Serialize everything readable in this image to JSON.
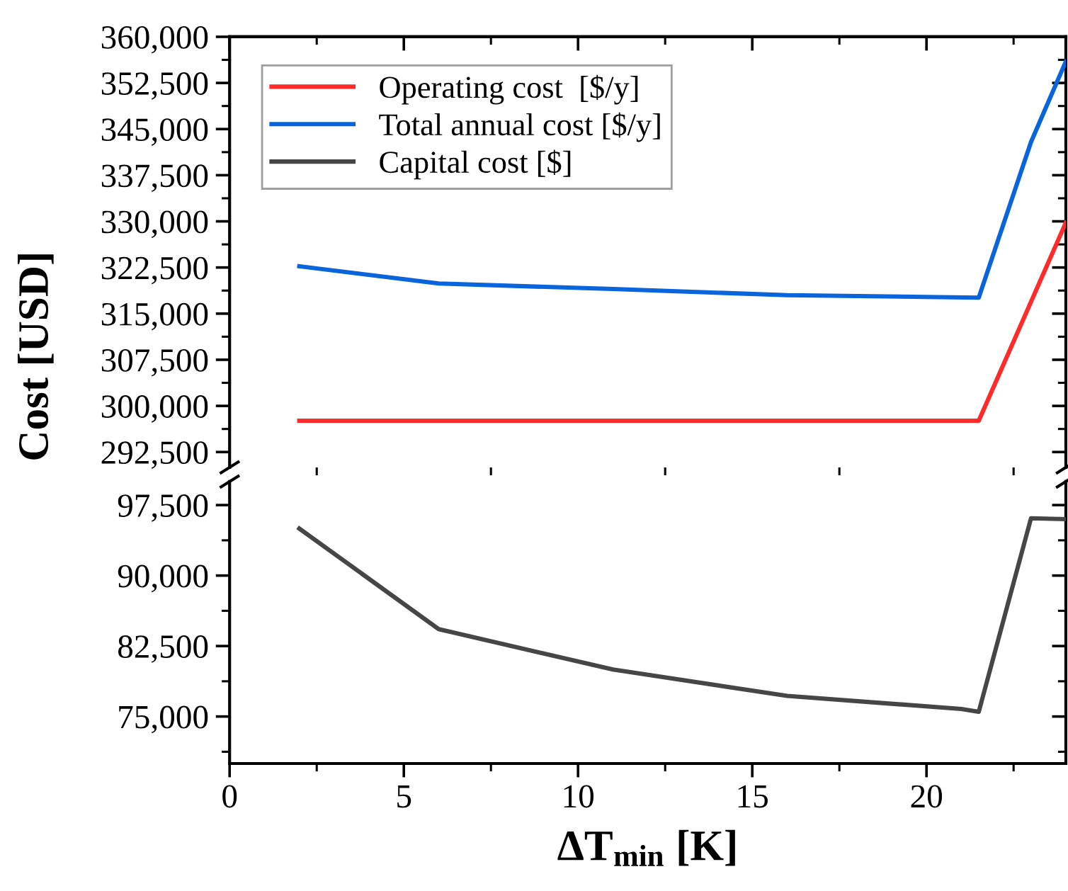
{
  "chart_data": [
    {
      "type": "line",
      "xlim": [
        0,
        24
      ],
      "ylim": [
        290000,
        360000
      ],
      "tick_labels": "y",
      "xticks": [
        0,
        5,
        10,
        15,
        20
      ],
      "yticks": [
        {
          "value": 292500,
          "label": "292,500"
        },
        {
          "value": 300000,
          "label": "300,000"
        },
        {
          "value": 307500,
          "label": "307,500"
        },
        {
          "value": 315000,
          "label": "315,000"
        },
        {
          "value": 322500,
          "label": "322,500"
        },
        {
          "value": 330000,
          "label": "330,000"
        },
        {
          "value": 337500,
          "label": "337,500"
        },
        {
          "value": 345000,
          "label": "345,000"
        },
        {
          "value": 352500,
          "label": "352,500"
        },
        {
          "value": 360000,
          "label": "360,000"
        }
      ],
      "ylabel": "Cost [USD]",
      "legend": "top left",
      "grid": false,
      "marker": "none",
      "line_style": "solid",
      "series": [
        {
          "name": "Operating cost  [$/y]",
          "color": "#ff2a2a",
          "x": [
            2,
            6,
            11,
            16,
            21.5,
            24
          ],
          "values": [
            297600,
            297600,
            297600,
            297600,
            297600,
            329800
          ]
        },
        {
          "name": "Total annual cost [$/y]",
          "color": "#0a64dc",
          "x": [
            2,
            6,
            11,
            16,
            21.5,
            23,
            24
          ],
          "values": [
            322700,
            319900,
            319000,
            318000,
            317600,
            342900,
            356000
          ]
        }
      ]
    },
    {
      "type": "line",
      "xlim": [
        0,
        24
      ],
      "ylim": [
        70000,
        100000
      ],
      "xticks": [
        0,
        5,
        10,
        15,
        20
      ],
      "yticks": [
        {
          "value": 75000,
          "label": "75,000"
        },
        {
          "value": 82500,
          "label": "82,500"
        },
        {
          "value": 90000,
          "label": "90,000"
        },
        {
          "value": 97500,
          "label": "97,500"
        }
      ],
      "xlabel": "ΔT$_{min}$ [K]",
      "grid": false,
      "marker": "none",
      "line_style": "solid",
      "series": [
        {
          "name": "Capital cost [$]",
          "color": "#464646",
          "x": [
            2,
            6,
            11,
            16,
            21,
            21.5,
            23,
            24
          ],
          "values": [
            95000,
            84300,
            80000,
            77200,
            75800,
            75500,
            96100,
            96000
          ]
        }
      ]
    }
  ]
}
